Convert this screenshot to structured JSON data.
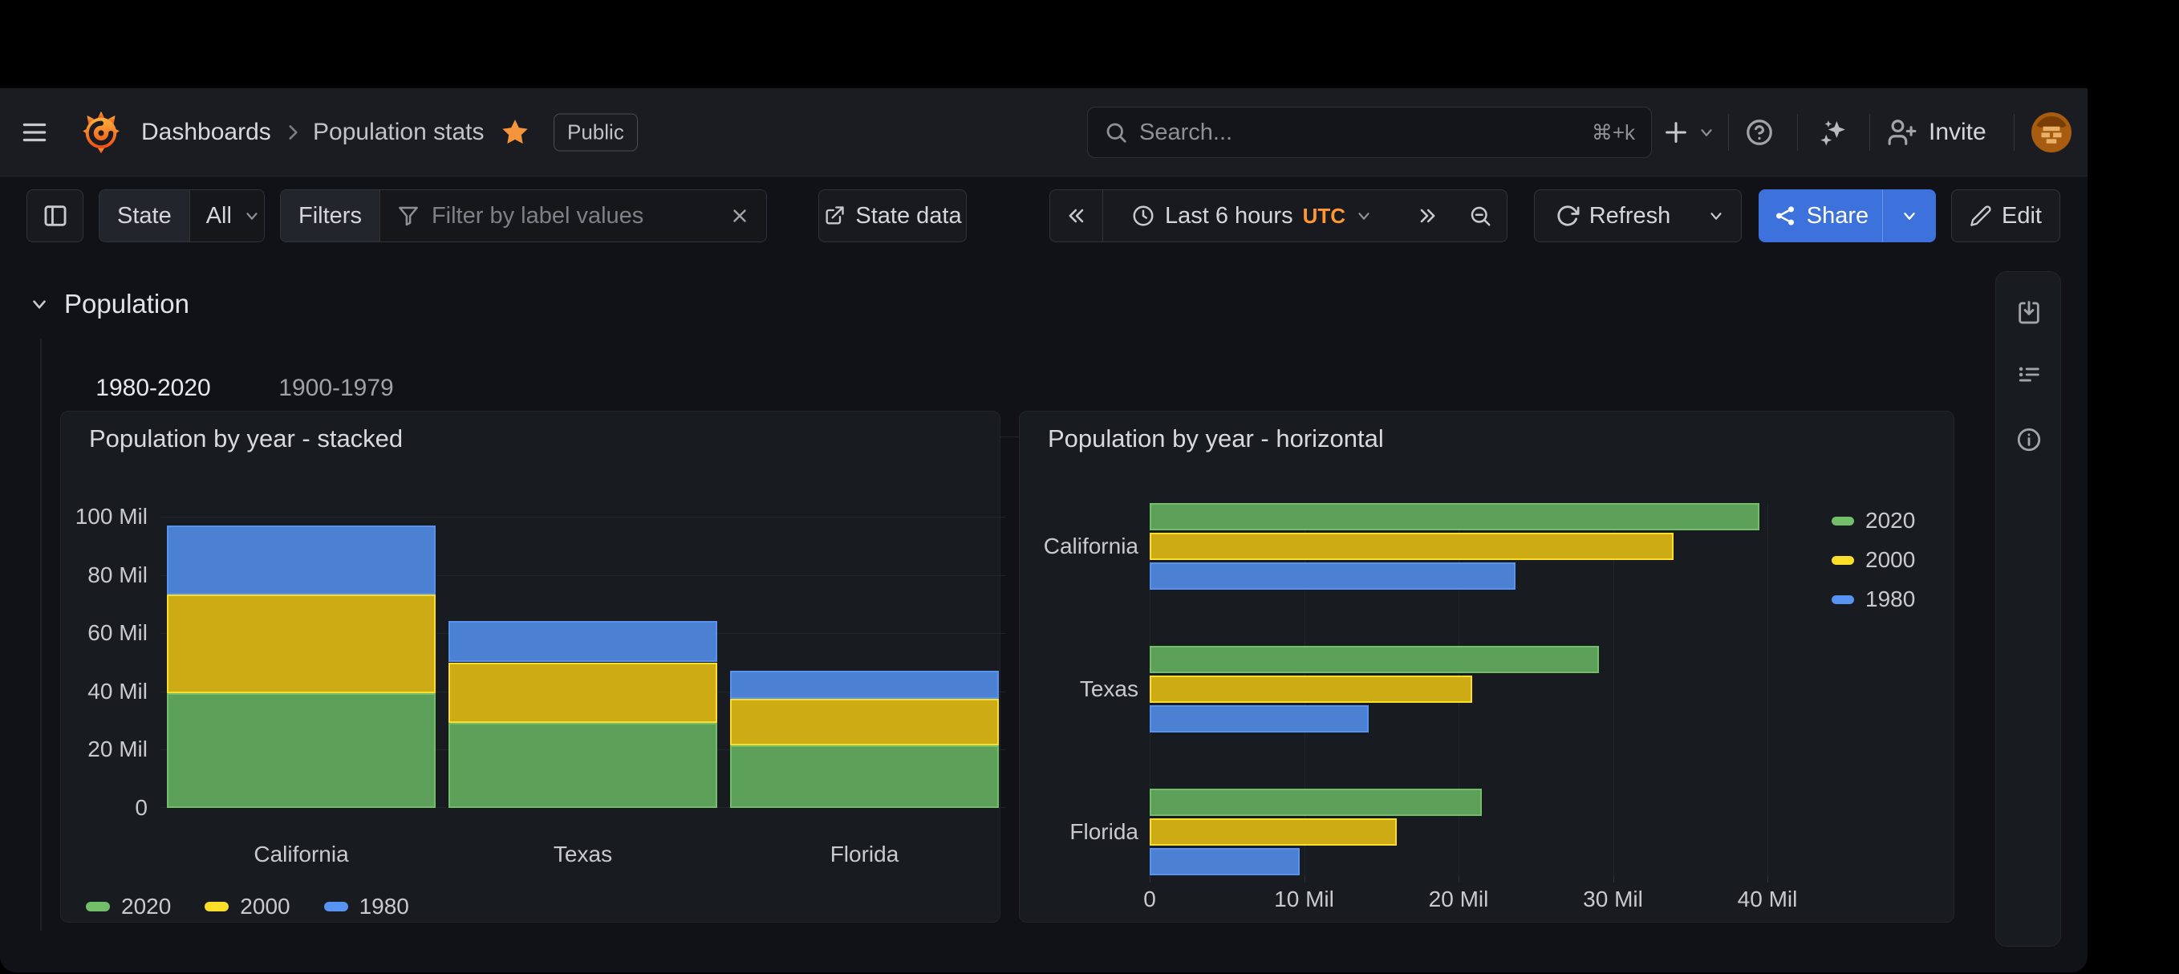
{
  "header": {
    "breadcrumb": [
      "Dashboards",
      "Population stats"
    ],
    "public_badge": "Public",
    "search": {
      "placeholder": "Search...",
      "shortcut": "⌘+k"
    },
    "invite_label": "Invite"
  },
  "toolbar": {
    "state_label": "State",
    "state_value": "All",
    "filters_label": "Filters",
    "filter_placeholder": "Filter by label values",
    "state_data_label": "State data",
    "time_range_label": "Last 6 hours",
    "timezone": "UTC",
    "refresh_label": "Refresh",
    "share_label": "Share",
    "edit_label": "Edit"
  },
  "row": {
    "title": "Population"
  },
  "tabs": [
    {
      "label": "1980-2020",
      "active": true
    },
    {
      "label": "1900-1979",
      "active": false
    }
  ],
  "colors": {
    "accent_blue": "#3D71DC",
    "accent_orange": "#FF9830",
    "tab_underline": [
      "#F8A24C",
      "#F2542D"
    ],
    "series_green": "#73BF69",
    "series_yellow": "#FADE2A",
    "series_blue": "#5794F2"
  },
  "chart_data": [
    {
      "type": "bar",
      "orientation": "vertical",
      "stacked": true,
      "title": "Population by year - stacked",
      "categories": [
        "California",
        "Texas",
        "Florida"
      ],
      "series": [
        {
          "name": "2020",
          "color": "#73BF69",
          "fill": "#5CA05A",
          "values": [
            39.5,
            29.1,
            21.5
          ]
        },
        {
          "name": "2000",
          "color": "#FADE2A",
          "fill": "#CDAB15",
          "values": [
            33.9,
            20.9,
            16.0
          ]
        },
        {
          "name": "1980",
          "color": "#5794F2",
          "fill": "#4C80D2",
          "values": [
            23.7,
            14.2,
            9.7
          ]
        }
      ],
      "value_unit": "Mil",
      "ylim": [
        0,
        100
      ],
      "yticks": [
        {
          "value": 0,
          "label": "0"
        },
        {
          "value": 20,
          "label": "20 Mil"
        },
        {
          "value": 40,
          "label": "40 Mil"
        },
        {
          "value": 60,
          "label": "60 Mil"
        },
        {
          "value": 80,
          "label": "80 Mil"
        },
        {
          "value": 100,
          "label": "100 Mil"
        }
      ],
      "grid": true,
      "legend_position": "bottom"
    },
    {
      "type": "bar",
      "orientation": "horizontal",
      "stacked": false,
      "title": "Population by year - horizontal",
      "categories": [
        "California",
        "Texas",
        "Florida"
      ],
      "series": [
        {
          "name": "2020",
          "color": "#73BF69",
          "fill": "#5CA05A",
          "values": [
            39.5,
            29.1,
            21.5
          ]
        },
        {
          "name": "2000",
          "color": "#FADE2A",
          "fill": "#CDAB15",
          "values": [
            33.9,
            20.9,
            16.0
          ]
        },
        {
          "name": "1980",
          "color": "#5794F2",
          "fill": "#4C80D2",
          "values": [
            23.7,
            14.2,
            9.7
          ]
        }
      ],
      "value_unit": "Mil",
      "xlim": [
        0,
        44
      ],
      "xticks": [
        {
          "value": 0,
          "label": "0"
        },
        {
          "value": 10,
          "label": "10 Mil"
        },
        {
          "value": 20,
          "label": "20 Mil"
        },
        {
          "value": 30,
          "label": "30 Mil"
        },
        {
          "value": 40,
          "label": "40 Mil"
        }
      ],
      "grid": true,
      "legend_position": "right"
    }
  ]
}
